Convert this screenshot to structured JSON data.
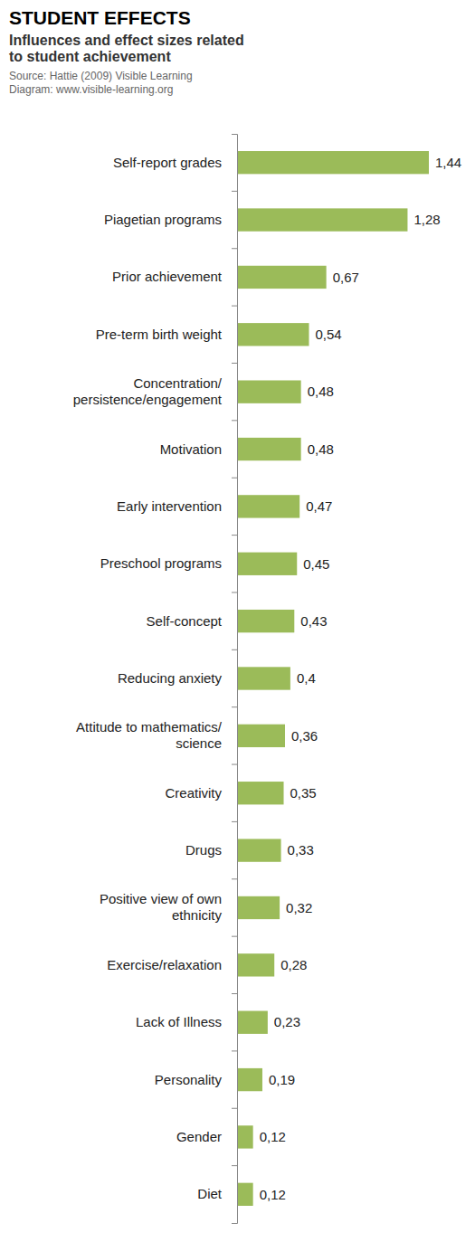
{
  "chart_data": {
    "type": "bar",
    "orientation": "horizontal",
    "title": "STUDENT EFFECTS",
    "subtitle": "Influences and effect sizes related to student achievement",
    "annotations": [
      "Source: Hattie (2009) Visible Learning",
      "Diagram: www.visible-learning.org"
    ],
    "categories": [
      "Self-report grades",
      "Piagetian programs",
      "Prior achievement",
      "Pre-term birth weight",
      "Concentration/ persistence/engagement",
      "Motivation",
      "Early intervention",
      "Preschool programs",
      "Self-concept",
      "Reducing anxiety",
      "Attitude to mathematics/ science",
      "Creativity",
      "Drugs",
      "Positive view of own ethnicity",
      "Exercise/relaxation",
      "Lack of Illness",
      "Personality",
      "Gender",
      "Diet"
    ],
    "values": [
      1.44,
      1.28,
      0.67,
      0.54,
      0.48,
      0.48,
      0.47,
      0.45,
      0.43,
      0.4,
      0.36,
      0.35,
      0.33,
      0.32,
      0.28,
      0.23,
      0.19,
      0.12,
      0.12
    ],
    "value_labels": [
      "1,44",
      "1,28",
      "0,67",
      "0,54",
      "0,48",
      "0,48",
      "0,47",
      "0,45",
      "0,43",
      "0,4",
      "0,36",
      "0,35",
      "0,33",
      "0,32",
      "0,28",
      "0,23",
      "0,19",
      "0,12",
      "0,12"
    ],
    "color": "#9bbb59",
    "xlim": [
      0,
      1.44
    ],
    "data_labels": true,
    "tick_labels": "y",
    "grid": false
  }
}
